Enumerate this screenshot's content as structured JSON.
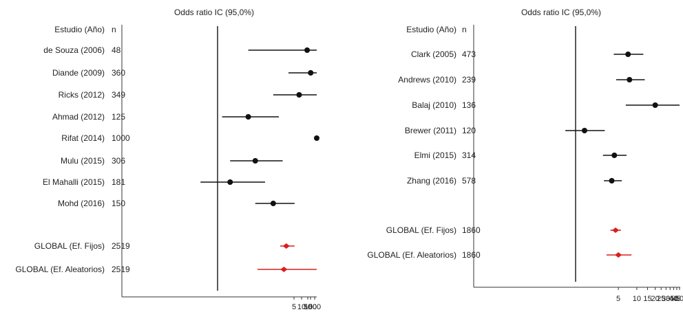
{
  "chart_data": [
    {
      "type": "forest",
      "title": "Odds ratio IC  (95,0%)",
      "header": {
        "study": "Estudio  (Año)",
        "n": "n"
      },
      "axis": {
        "scale": "log",
        "reference_line": 1,
        "xlim": [
          0.13,
          900
        ],
        "ticks": [
          "5",
          "10",
          "50",
          "100",
          "500"
        ]
      },
      "rows": [
        {
          "study": "de Souza  (2006)",
          "n": "48",
          "or": 6.5,
          "lo": 1.9,
          "hi": 32,
          "kind": "study"
        },
        {
          "study": "Diande  (2009)",
          "n": "360",
          "or": 7.0,
          "lo": 4.4,
          "hi": 11.5,
          "kind": "study"
        },
        {
          "study": "Ricks  (2012)",
          "n": "349",
          "or": 5.5,
          "lo": 3.2,
          "hi": 9.5,
          "kind": "study"
        },
        {
          "study": "Ahmad  (2012)",
          "n": "125",
          "or": 1.9,
          "lo": 1.1,
          "hi": 3.6,
          "kind": "study"
        },
        {
          "study": "Rifat  (2014)",
          "n": "1000",
          "or": 120,
          "lo": 55,
          "hi": 420,
          "kind": "study"
        },
        {
          "study": "Mulu  (2015)",
          "n": "306",
          "or": 2.2,
          "lo": 1.3,
          "hi": 3.9,
          "kind": "study"
        },
        {
          "study": "El Mahalli  (2015)",
          "n": "181",
          "or": 1.3,
          "lo": 0.7,
          "hi": 2.7,
          "kind": "study"
        },
        {
          "study": "Mohd  (2016)",
          "n": "150",
          "or": 3.2,
          "lo": 2.2,
          "hi": 5.0,
          "kind": "study"
        },
        {
          "study": "GLOBAL (Ef. Fijos)",
          "n": "2519",
          "or": 4.2,
          "lo": 3.7,
          "hi": 5.0,
          "kind": "global"
        },
        {
          "study": "GLOBAL (Ef. Aleatorios)",
          "n": "2519",
          "or": 4.0,
          "lo": 2.3,
          "hi": 9.5,
          "kind": "global"
        }
      ]
    },
    {
      "type": "forest",
      "title": "Odds ratio IC  (95,0%)",
      "header": {
        "study": "Estudio  (Año)",
        "n": "n"
      },
      "axis": {
        "scale": "log",
        "reference_line": 1,
        "xlim": [
          0.52,
          50
        ],
        "ticks": [
          "5",
          "10",
          "15",
          "20",
          "25",
          "30",
          "35",
          "40",
          "45",
          "50"
        ]
      },
      "rows": [
        {
          "study": "Clark  (2005)",
          "n": "473",
          "or": 7.2,
          "lo": 4.2,
          "hi": 12.8,
          "kind": "study"
        },
        {
          "study": "Andrews  (2010)",
          "n": "239",
          "or": 7.6,
          "lo": 4.6,
          "hi": 13.5,
          "kind": "study"
        },
        {
          "study": "Balaj  (2010)",
          "n": "136",
          "or": 20,
          "lo": 6.6,
          "hi": 50,
          "kind": "study"
        },
        {
          "study": "Brewer  (2011)",
          "n": "120",
          "or": 1.4,
          "lo": 0.68,
          "hi": 3.0,
          "kind": "study"
        },
        {
          "study": "Elmi  (2015)",
          "n": "314",
          "or": 4.3,
          "lo": 2.8,
          "hi": 6.8,
          "kind": "study"
        },
        {
          "study": "Zhang  (2016)",
          "n": "578",
          "or": 3.9,
          "lo": 2.9,
          "hi": 5.7,
          "kind": "study"
        },
        {
          "study": "GLOBAL  (Ef. Fijos)",
          "n": "1860",
          "or": 4.5,
          "lo": 3.7,
          "hi": 5.5,
          "kind": "global"
        },
        {
          "study": "GLOBAL  (Ef. Aleatorios)",
          "n": "1860",
          "or": 5.0,
          "lo": 3.2,
          "hi": 8.2,
          "kind": "global"
        }
      ]
    }
  ],
  "colors": {
    "study": "#111111",
    "global": "#d81e1e",
    "axis": "#333333"
  }
}
